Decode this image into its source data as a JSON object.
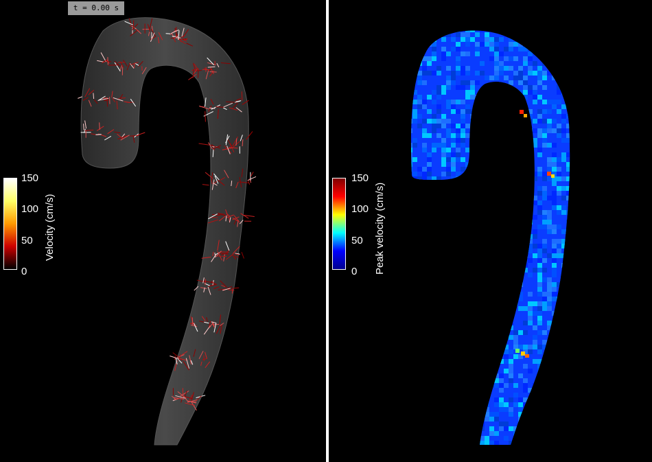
{
  "left_panel": {
    "time_label": "t = 0.00 s",
    "colorbar": {
      "title": "Velocity (cm/s)",
      "ticks": [
        "150",
        "100",
        "50",
        "0"
      ],
      "colors": [
        "#ffffff",
        "#ffff66",
        "#ff9900",
        "#cc0000",
        "#000000"
      ]
    }
  },
  "right_panel": {
    "colorbar": {
      "title": "Peak velocity (cm/s)",
      "ticks": [
        "150",
        "100",
        "50",
        "0"
      ],
      "colors": [
        "#800000",
        "#ff0000",
        "#ffff00",
        "#00ffff",
        "#0000ff",
        "#00008f"
      ]
    }
  },
  "colors": {
    "background": "#000000",
    "divider": "#ffffff",
    "vessel_gray": "#3a3a3a",
    "vessel_blue": "#0a3cff"
  }
}
